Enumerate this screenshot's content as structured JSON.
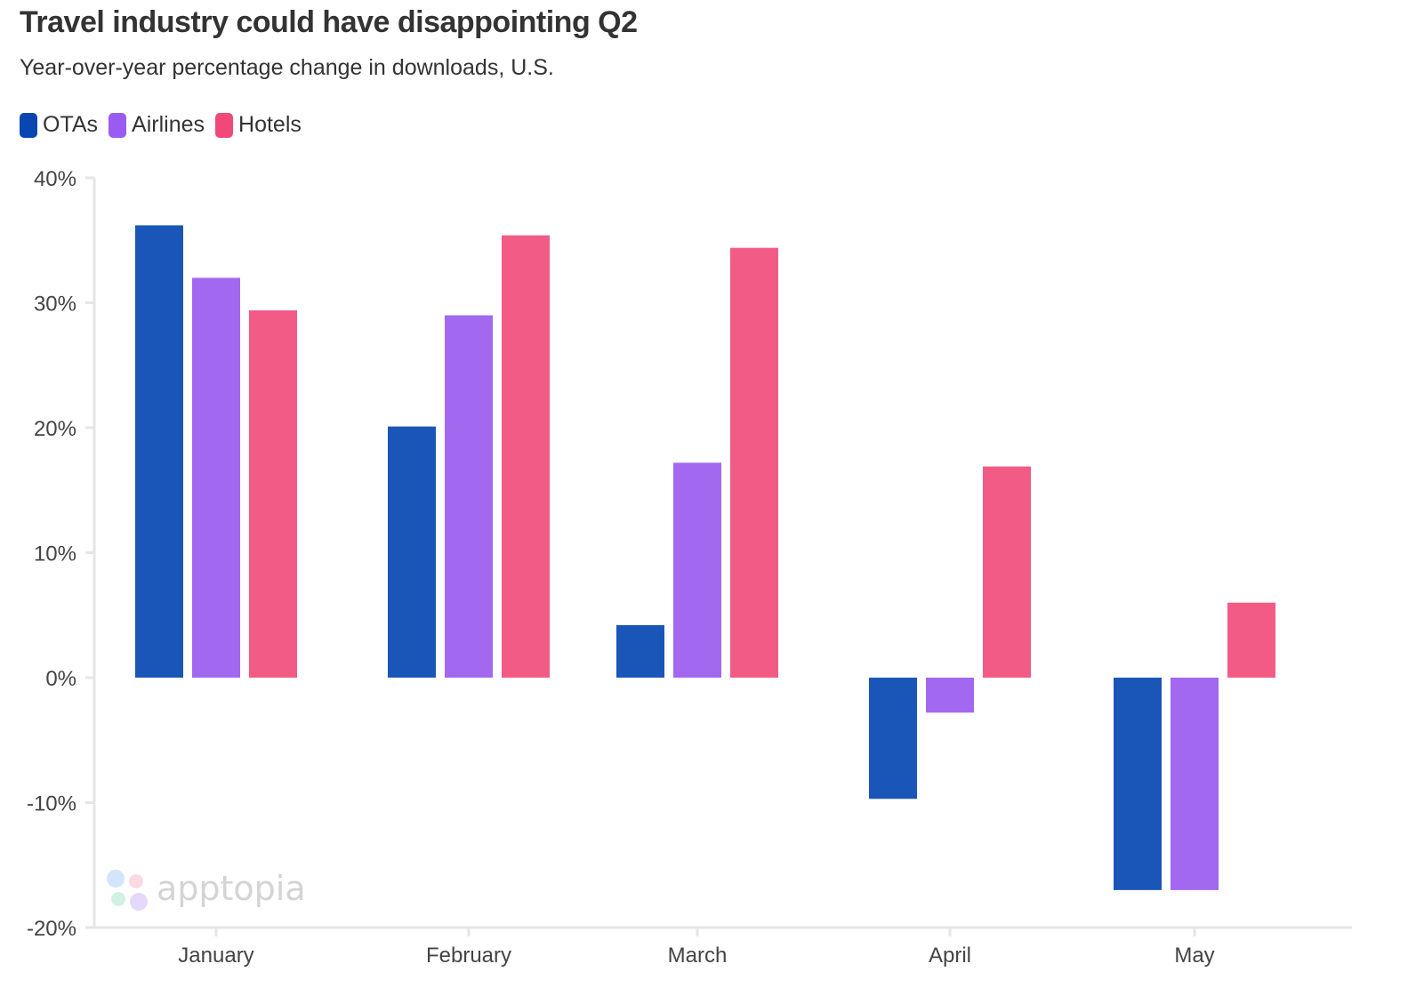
{
  "chart_data": {
    "type": "bar",
    "title": "Travel industry could have disappointing Q2",
    "subtitle": "Year-over-year percentage change in downloads, U.S.",
    "categories": [
      "January",
      "February",
      "March",
      "April",
      "May"
    ],
    "series": [
      {
        "name": "OTAs",
        "color": "#1a56b8",
        "legend_color": "#0a45b4",
        "values": [
          36.2,
          20.1,
          4.2,
          -9.7,
          -17.0
        ]
      },
      {
        "name": "Airlines",
        "color": "#a368f0",
        "legend_color": "#9a5cf0",
        "values": [
          32.0,
          29.0,
          17.2,
          -2.8,
          -17.0
        ]
      },
      {
        "name": "Hotels",
        "color": "#f25b85",
        "legend_color": "#f24878",
        "values": [
          29.4,
          35.4,
          34.4,
          16.9,
          6.0
        ]
      }
    ],
    "ylim": [
      -20,
      40
    ],
    "yticks": [
      -20,
      -10,
      0,
      10,
      20,
      30,
      40
    ],
    "ytick_labels": [
      "-20%",
      "-10%",
      "0%",
      "10%",
      "20%",
      "30%",
      "40%"
    ],
    "xlabel": "",
    "ylabel": "",
    "grid": false,
    "legend_placement": "top-left",
    "watermark": "apptopia"
  }
}
